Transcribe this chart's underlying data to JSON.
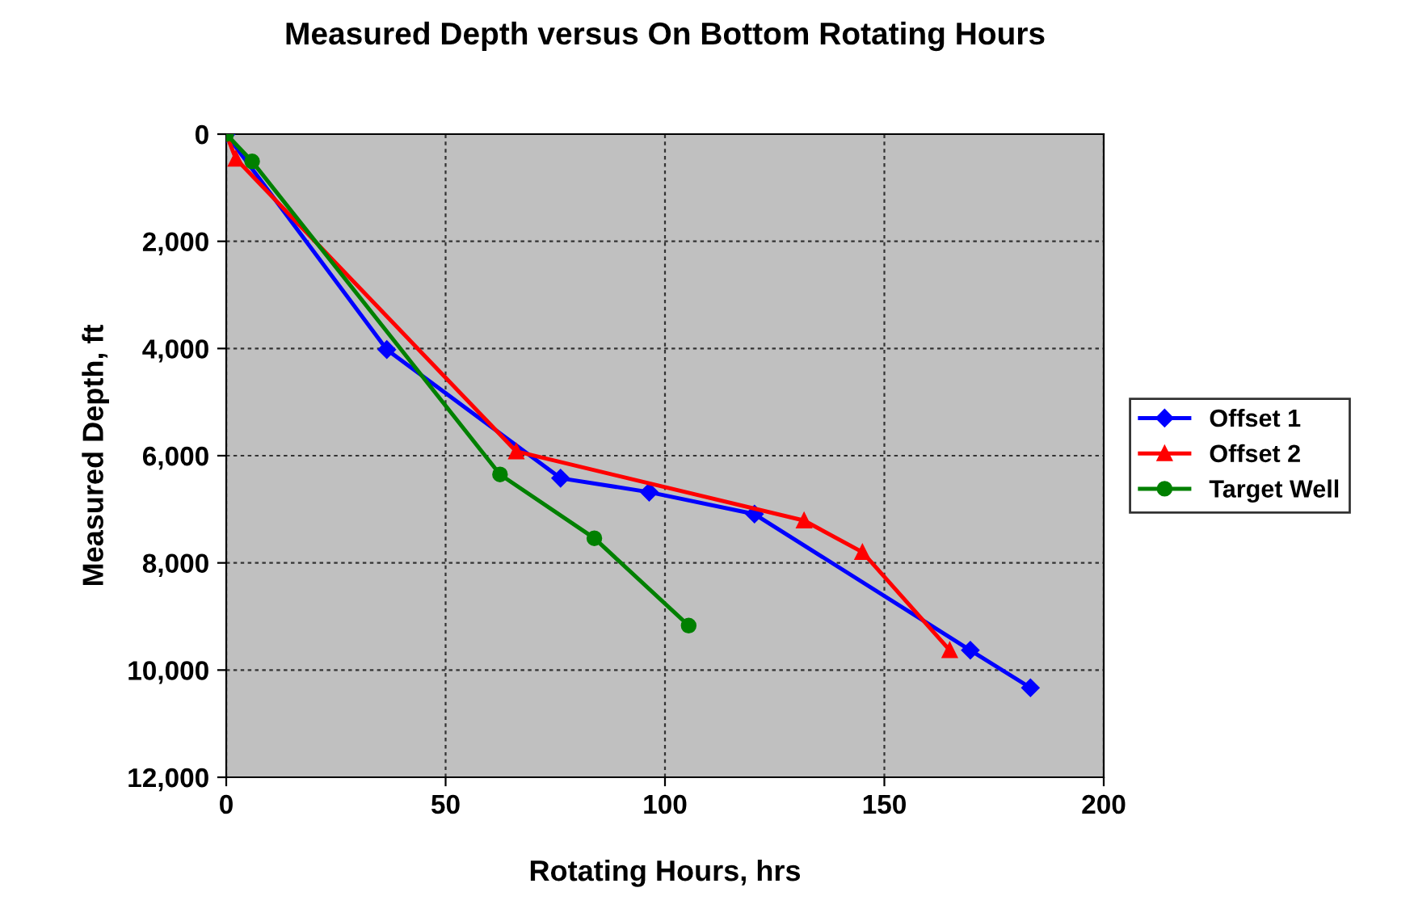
{
  "chart_data": {
    "type": "line",
    "title": "Measured Depth versus On Bottom Rotating Hours",
    "xlabel": "Rotating Hours, hrs",
    "ylabel": "Measured Depth, ft",
    "xlim": [
      0,
      200
    ],
    "xticks": [
      0,
      50,
      100,
      150,
      200
    ],
    "ylim": [
      12000,
      0
    ],
    "yticks": [
      {
        "value": 0,
        "label": "0"
      },
      {
        "value": 2000,
        "label": "2,000"
      },
      {
        "value": 4000,
        "label": "4,000"
      },
      {
        "value": 6000,
        "label": "6,000"
      },
      {
        "value": 8000,
        "label": "8,000"
      },
      {
        "value": 10000,
        "label": "10,000"
      },
      {
        "value": 12000,
        "label": "12,000"
      }
    ],
    "grid": true,
    "legend": "right",
    "line_style": "solid",
    "series": [
      {
        "name": "Offset 1",
        "color": "#0000ff",
        "marker": "diamond",
        "x": [
          0,
          36.6,
          76.2,
          96.4,
          120.4,
          169.6,
          183.3
        ],
        "values": [
          0,
          4020,
          6420,
          6680,
          7090,
          9630,
          10330
        ]
      },
      {
        "name": "Offset 2",
        "color": "#ff0000",
        "marker": "triangle",
        "x": [
          0,
          2.2,
          66.1,
          131.7,
          145,
          164.9
        ],
        "values": [
          0,
          460,
          5920,
          7210,
          7800,
          9630
        ]
      },
      {
        "name": "Target Well",
        "color": "#008000",
        "marker": "circle",
        "x": [
          0,
          5.9,
          62.4,
          83.9,
          105.4
        ],
        "values": [
          0,
          510,
          6350,
          7540,
          9170
        ]
      }
    ]
  }
}
